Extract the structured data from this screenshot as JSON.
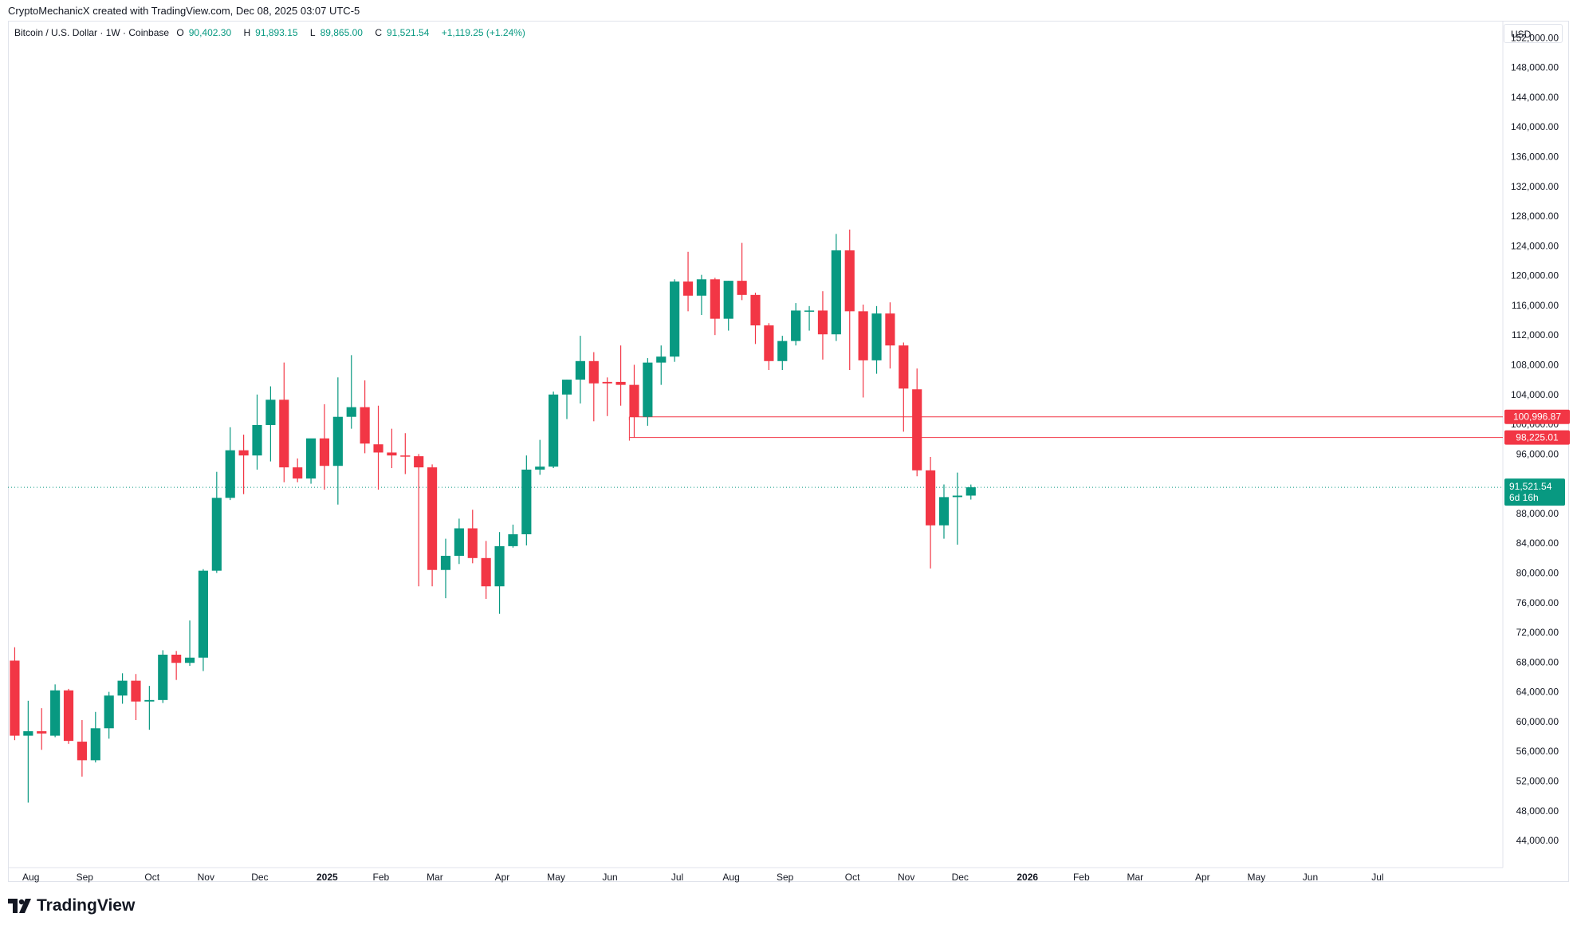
{
  "header": {
    "created_text": "CryptoMechanicX created with TradingView.com, Dec 08, 2025 03:07 UTC-5"
  },
  "legend": {
    "symbol": "Bitcoin / U.S. Dollar · 1W · Coinbase",
    "open_label": "O",
    "open_value": "90,402.30",
    "high_label": "H",
    "high_value": "91,893.15",
    "low_label": "L",
    "low_value": "89,865.00",
    "close_label": "C",
    "close_value": "91,521.54",
    "change": "+1,119.25 (+1.24%)"
  },
  "currency_button": "USD",
  "logo_text": "TradingView",
  "colors": {
    "up": "#089981",
    "down": "#f23645",
    "line": "#f23645",
    "grid_border": "#e0e3eb"
  },
  "chart_data": {
    "type": "candlestick",
    "interval": "1W",
    "exchange": "Coinbase",
    "ylim": [
      41000,
      153000
    ],
    "y_ticks": [
      44000,
      48000,
      52000,
      56000,
      60000,
      64000,
      68000,
      72000,
      76000,
      80000,
      84000,
      88000,
      92000,
      96000,
      100000,
      104000,
      108000,
      112000,
      116000,
      120000,
      124000,
      128000,
      132000,
      136000,
      140000,
      144000,
      148000,
      152000
    ],
    "y_tick_labels": [
      "44,000.00",
      "48,000.00",
      "52,000.00",
      "56,000.00",
      "60,000.00",
      "64,000.00",
      "68,000.00",
      "72,000.00",
      "76,000.00",
      "80,000.00",
      "84,000.00",
      "88,000.00",
      "92,000.00",
      "96,000.00",
      "100,000.00",
      "104,000.00",
      "108,000.00",
      "112,000.00",
      "116,000.00",
      "120,000.00",
      "124,000.00",
      "128,000.00",
      "132,000.00",
      "136,000.00",
      "140,000.00",
      "144,000.00",
      "148,000.00",
      "152,000.00"
    ],
    "x_labels": [
      {
        "label": "Aug",
        "week": 1.2
      },
      {
        "label": "Sep",
        "week": 5.2
      },
      {
        "label": "Oct",
        "week": 10.2
      },
      {
        "label": "Nov",
        "week": 14.2
      },
      {
        "label": "Dec",
        "week": 18.2
      },
      {
        "label": "2025",
        "week": 23.2,
        "bold": true
      },
      {
        "label": "Feb",
        "week": 27.2
      },
      {
        "label": "Mar",
        "week": 31.2
      },
      {
        "label": "Apr",
        "week": 36.2
      },
      {
        "label": "May",
        "week": 40.2
      },
      {
        "label": "Jun",
        "week": 44.2
      },
      {
        "label": "Jul",
        "week": 49.2
      },
      {
        "label": "Aug",
        "week": 53.2
      },
      {
        "label": "Sep",
        "week": 57.2
      },
      {
        "label": "Oct",
        "week": 62.2
      },
      {
        "label": "Nov",
        "week": 66.2
      },
      {
        "label": "Dec",
        "week": 70.2
      },
      {
        "label": "2026",
        "week": 75.2,
        "bold": true
      },
      {
        "label": "Feb",
        "week": 79.2
      },
      {
        "label": "Mar",
        "week": 83.2
      },
      {
        "label": "Apr",
        "week": 88.2
      },
      {
        "label": "May",
        "week": 92.2
      },
      {
        "label": "Jun",
        "week": 96.2
      },
      {
        "label": "Jul",
        "week": 101.2
      }
    ],
    "x_week_range": [
      -0.5,
      110.5
    ],
    "candles": [
      {
        "o": 68200,
        "h": 70000,
        "l": 57500,
        "c": 58100
      },
      {
        "o": 58100,
        "h": 62800,
        "l": 49100,
        "c": 58700
      },
      {
        "o": 58700,
        "h": 61800,
        "l": 56200,
        "c": 58400
      },
      {
        "o": 58100,
        "h": 65000,
        "l": 57900,
        "c": 64200
      },
      {
        "o": 64200,
        "h": 64400,
        "l": 57000,
        "c": 57400
      },
      {
        "o": 57300,
        "h": 60200,
        "l": 52600,
        "c": 54800
      },
      {
        "o": 54800,
        "h": 61300,
        "l": 54500,
        "c": 59100
      },
      {
        "o": 59100,
        "h": 64000,
        "l": 57700,
        "c": 63500
      },
      {
        "o": 63500,
        "h": 66500,
        "l": 62400,
        "c": 65500
      },
      {
        "o": 65500,
        "h": 66400,
        "l": 60200,
        "c": 62700
      },
      {
        "o": 62700,
        "h": 64800,
        "l": 58900,
        "c": 62900
      },
      {
        "o": 62900,
        "h": 69600,
        "l": 62500,
        "c": 69000
      },
      {
        "o": 69000,
        "h": 69500,
        "l": 65600,
        "c": 67900
      },
      {
        "o": 67900,
        "h": 73600,
        "l": 67500,
        "c": 68600
      },
      {
        "o": 68600,
        "h": 80500,
        "l": 66800,
        "c": 80300
      },
      {
        "o": 80300,
        "h": 93600,
        "l": 80000,
        "c": 90100
      },
      {
        "o": 90100,
        "h": 99600,
        "l": 89800,
        "c": 96500
      },
      {
        "o": 96500,
        "h": 98600,
        "l": 90600,
        "c": 95800
      },
      {
        "o": 95800,
        "h": 104000,
        "l": 93900,
        "c": 99900
      },
      {
        "o": 99900,
        "h": 105100,
        "l": 95000,
        "c": 103300
      },
      {
        "o": 103300,
        "h": 108300,
        "l": 92200,
        "c": 94200
      },
      {
        "o": 94200,
        "h": 95400,
        "l": 92200,
        "c": 92700
      },
      {
        "o": 92700,
        "h": 97900,
        "l": 92000,
        "c": 98100
      },
      {
        "o": 98100,
        "h": 102700,
        "l": 91200,
        "c": 94400
      },
      {
        "o": 94400,
        "h": 106300,
        "l": 89200,
        "c": 101000
      },
      {
        "o": 101000,
        "h": 109300,
        "l": 99400,
        "c": 102300
      },
      {
        "o": 102300,
        "h": 105900,
        "l": 96100,
        "c": 97400
      },
      {
        "o": 97300,
        "h": 102500,
        "l": 91200,
        "c": 96200
      },
      {
        "o": 96200,
        "h": 99400,
        "l": 94100,
        "c": 95800
      },
      {
        "o": 95800,
        "h": 98800,
        "l": 93300,
        "c": 95700
      },
      {
        "o": 95700,
        "h": 96000,
        "l": 78200,
        "c": 94200
      },
      {
        "o": 94200,
        "h": 94600,
        "l": 78200,
        "c": 80400
      },
      {
        "o": 80400,
        "h": 84600,
        "l": 76600,
        "c": 82300
      },
      {
        "o": 82300,
        "h": 87300,
        "l": 81200,
        "c": 86000
      },
      {
        "o": 86000,
        "h": 88500,
        "l": 81300,
        "c": 82000
      },
      {
        "o": 82000,
        "h": 84300,
        "l": 76500,
        "c": 78200
      },
      {
        "o": 78200,
        "h": 85500,
        "l": 74500,
        "c": 83600
      },
      {
        "o": 83600,
        "h": 86500,
        "l": 83400,
        "c": 85200
      },
      {
        "o": 85200,
        "h": 95800,
        "l": 83700,
        "c": 93900
      },
      {
        "o": 93900,
        "h": 97900,
        "l": 93200,
        "c": 94300
      },
      {
        "o": 94300,
        "h": 104400,
        "l": 94100,
        "c": 104000
      },
      {
        "o": 104000,
        "h": 106000,
        "l": 100700,
        "c": 106000
      },
      {
        "o": 106000,
        "h": 111900,
        "l": 102800,
        "c": 108500
      },
      {
        "o": 108500,
        "h": 109700,
        "l": 100400,
        "c": 105500
      },
      {
        "o": 105700,
        "h": 106300,
        "l": 101100,
        "c": 105500
      },
      {
        "o": 105700,
        "h": 110600,
        "l": 102500,
        "c": 105300
      },
      {
        "o": 105300,
        "h": 108000,
        "l": 98200,
        "c": 101000
      },
      {
        "o": 101000,
        "h": 108900,
        "l": 99800,
        "c": 108300
      },
      {
        "o": 108300,
        "h": 110600,
        "l": 105300,
        "c": 109100
      },
      {
        "o": 109100,
        "h": 119500,
        "l": 108400,
        "c": 119200
      },
      {
        "o": 119200,
        "h": 123200,
        "l": 115200,
        "c": 117300
      },
      {
        "o": 117300,
        "h": 120100,
        "l": 114700,
        "c": 119500
      },
      {
        "o": 119500,
        "h": 119700,
        "l": 112000,
        "c": 114200
      },
      {
        "o": 114200,
        "h": 119300,
        "l": 112600,
        "c": 119300
      },
      {
        "o": 119300,
        "h": 124400,
        "l": 116700,
        "c": 117400
      },
      {
        "o": 117400,
        "h": 117700,
        "l": 110800,
        "c": 113300
      },
      {
        "o": 113300,
        "h": 113600,
        "l": 107300,
        "c": 108500
      },
      {
        "o": 108500,
        "h": 111900,
        "l": 107300,
        "c": 111200
      },
      {
        "o": 111200,
        "h": 116300,
        "l": 110600,
        "c": 115300
      },
      {
        "o": 115300,
        "h": 115900,
        "l": 112600,
        "c": 115300
      },
      {
        "o": 115300,
        "h": 117900,
        "l": 108700,
        "c": 112100
      },
      {
        "o": 112100,
        "h": 125600,
        "l": 111200,
        "c": 123400
      },
      {
        "o": 123400,
        "h": 126200,
        "l": 107300,
        "c": 115200
      },
      {
        "o": 115200,
        "h": 116100,
        "l": 103600,
        "c": 108600
      },
      {
        "o": 108600,
        "h": 115900,
        "l": 106800,
        "c": 114900
      },
      {
        "o": 114900,
        "h": 116400,
        "l": 107500,
        "c": 110600
      },
      {
        "o": 110600,
        "h": 111000,
        "l": 99000,
        "c": 104800
      },
      {
        "o": 104700,
        "h": 107500,
        "l": 93000,
        "c": 93800
      },
      {
        "o": 93800,
        "h": 95600,
        "l": 80600,
        "c": 86400
      },
      {
        "o": 86400,
        "h": 91900,
        "l": 84600,
        "c": 90200
      },
      {
        "o": 90200,
        "h": 93500,
        "l": 83800,
        "c": 90400
      },
      {
        "o": 90402.3,
        "h": 91893.15,
        "l": 89865.0,
        "c": 91521.54
      }
    ],
    "horizontal_lines": [
      {
        "price": 100996.87,
        "label": "100,996.87",
        "start_week": 46
      },
      {
        "price": 98225.01,
        "label": "98,225.01",
        "start_week": 46
      }
    ],
    "last_price": {
      "price": 91521.54,
      "label": "91,521.54",
      "countdown": "6d 16h"
    },
    "grid": false,
    "legend_position": "top-left"
  }
}
